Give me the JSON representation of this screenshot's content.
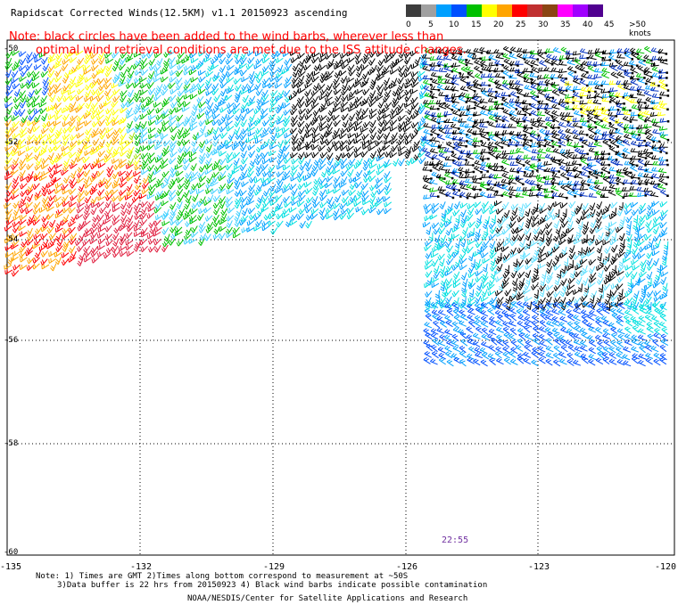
{
  "header": {
    "title": "Rapidscat Corrected Winds(12.5KM) v1.1 20150923 ascending"
  },
  "notice": {
    "line1": "Note: black circles have been added to the wind barbs, wherever less than",
    "line2": "optimal wind retrieval conditions are met due to the ISS attitude changes."
  },
  "legend": {
    "labels": [
      "0",
      "5",
      "10",
      "15",
      "20",
      "25",
      "30",
      "35",
      "40",
      "45",
      ">50 knots"
    ],
    "colors": [
      "#3c3c3c",
      "#a0a0a0",
      "#00a0ff",
      "#0050ff",
      "#00c000",
      "#ffff00",
      "#ffa500",
      "#ff0000",
      "#c03030",
      "#8b4513",
      "#ff00ff",
      "#a000ff",
      "#500090"
    ]
  },
  "axes": {
    "lat_labels": [
      "-50",
      "-52",
      "-54",
      "-56",
      "-58",
      "-60"
    ],
    "lon_labels": [
      "-135",
      "-132",
      "-129",
      "-126",
      "-123",
      "-120"
    ]
  },
  "pass_time": "22:55",
  "footer": {
    "line1": "Note: 1) Times are GMT 2)Times along bottom correspond to measurement at ~50S",
    "line2": "3)Data buffer is 22 hrs from 20150923 4) Black wind barbs indicate possible contamination",
    "line3": "NOAA/NESDIS/Center for Satellite Applications and Research"
  }
}
